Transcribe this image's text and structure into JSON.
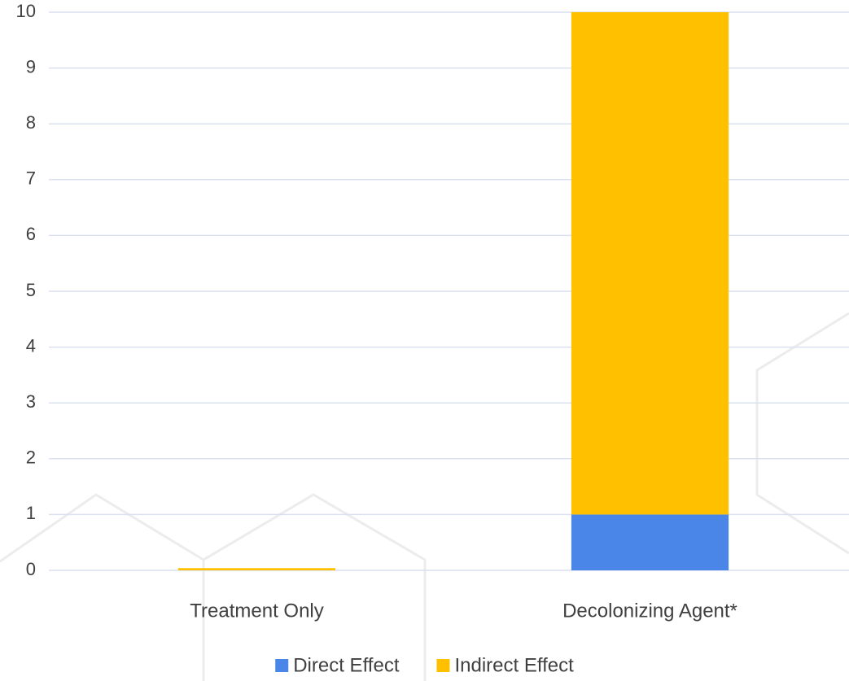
{
  "chart_data": {
    "type": "stacked_bar",
    "categories": [
      "Treatment Only",
      "Decolonizing Agent*"
    ],
    "series": [
      {
        "name": "Direct Effect",
        "color": "#4a86e8",
        "values": [
          0,
          1
        ]
      },
      {
        "name": "Indirect Effect",
        "color": "#ffc000",
        "values": [
          0.04,
          9
        ]
      }
    ],
    "ylim": [
      0,
      10
    ],
    "yticks": [
      0,
      1,
      2,
      3,
      4,
      5,
      6,
      7,
      8,
      9,
      10
    ],
    "grid": true,
    "legend": "bottom"
  }
}
